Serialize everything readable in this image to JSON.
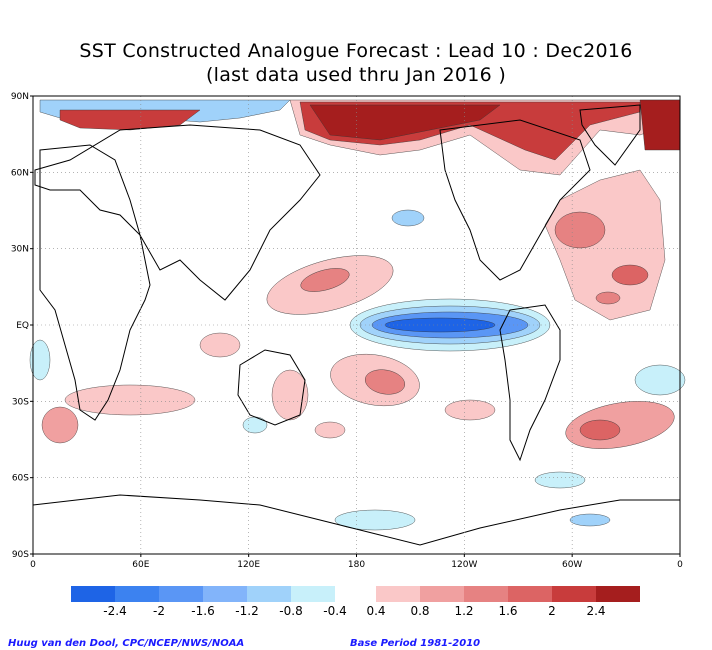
{
  "title_line1": "SST Constructed Analogue Forecast : Lead 10 : Dec2016",
  "title_line2": "(last data used thru Jan 2016 )",
  "lat_labels": [
    "90N",
    "60N",
    "30N",
    "EQ",
    "30S",
    "60S",
    "90S"
  ],
  "lon_labels": [
    "0",
    "60E",
    "120E",
    "180",
    "120W",
    "60W",
    "0"
  ],
  "colorbar": {
    "negative_colors": [
      "#1e64e6",
      "#3c82f0",
      "#5a96f5",
      "#82b4fa",
      "#a0d2fa",
      "#c8f0fa"
    ],
    "positive_colors": [
      "#fac8c8",
      "#f0a0a0",
      "#e68282",
      "#dc6464",
      "#c83c3c",
      "#a51e1e"
    ],
    "labels": [
      "-2.4",
      "-2",
      "-1.6",
      "-1.2",
      "-0.8",
      "-0.4",
      "0.4",
      "0.8",
      "1.2",
      "1.6",
      "2",
      "2.4"
    ]
  },
  "credit_left": "Huug van den Dool, CPC/NCEP/NWS/NOAA",
  "credit_right": "Base Period 1981-2010"
}
